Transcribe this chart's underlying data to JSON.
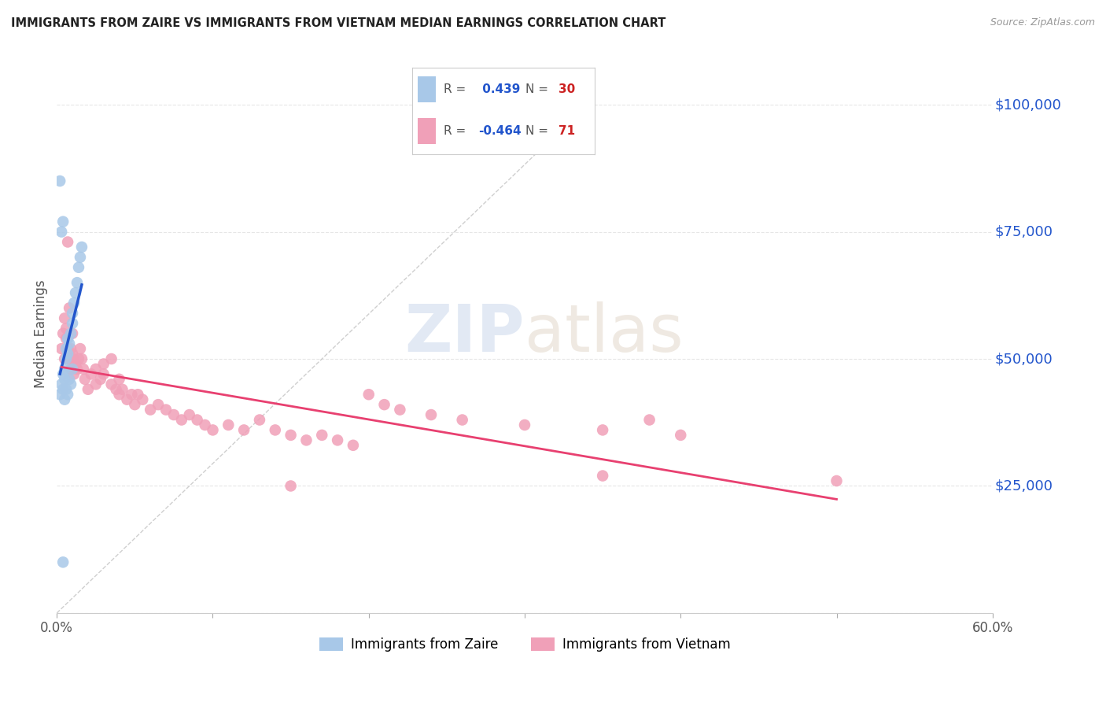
{
  "title": "IMMIGRANTS FROM ZAIRE VS IMMIGRANTS FROM VIETNAM MEDIAN EARNINGS CORRELATION CHART",
  "source": "Source: ZipAtlas.com",
  "ylabel": "Median Earnings",
  "xlim": [
    0.0,
    0.6
  ],
  "ylim": [
    0,
    110000
  ],
  "yticks": [
    0,
    25000,
    50000,
    75000,
    100000
  ],
  "ytick_labels": [
    "",
    "$25,000",
    "$50,000",
    "$75,000",
    "$100,000"
  ],
  "background_color": "#ffffff",
  "grid_color": "#e0e0e0",
  "zaire_color": "#a8c8e8",
  "vietnam_color": "#f0a0b8",
  "zaire_line_color": "#2255cc",
  "vietnam_line_color": "#e84070",
  "zaire_R": 0.439,
  "zaire_N": 30,
  "vietnam_R": -0.464,
  "vietnam_N": 71,
  "legend_R_color": "#2255cc",
  "legend_N_color": "#cc2222",
  "zaire_scatter": [
    [
      0.002,
      43000
    ],
    [
      0.003,
      45000
    ],
    [
      0.004,
      47000
    ],
    [
      0.004,
      44000
    ],
    [
      0.005,
      46000
    ],
    [
      0.005,
      48000
    ],
    [
      0.006,
      50000
    ],
    [
      0.006,
      52000
    ],
    [
      0.007,
      51000
    ],
    [
      0.007,
      54000
    ],
    [
      0.008,
      53000
    ],
    [
      0.009,
      55000
    ],
    [
      0.01,
      57000
    ],
    [
      0.01,
      59000
    ],
    [
      0.011,
      61000
    ],
    [
      0.012,
      63000
    ],
    [
      0.013,
      65000
    ],
    [
      0.014,
      68000
    ],
    [
      0.015,
      70000
    ],
    [
      0.016,
      72000
    ],
    [
      0.003,
      75000
    ],
    [
      0.004,
      77000
    ],
    [
      0.002,
      85000
    ],
    [
      0.005,
      42000
    ],
    [
      0.006,
      44000
    ],
    [
      0.007,
      43000
    ],
    [
      0.008,
      46000
    ],
    [
      0.009,
      45000
    ],
    [
      0.01,
      48000
    ],
    [
      0.004,
      10000
    ]
  ],
  "vietnam_scatter": [
    [
      0.003,
      52000
    ],
    [
      0.004,
      55000
    ],
    [
      0.005,
      58000
    ],
    [
      0.005,
      50000
    ],
    [
      0.006,
      54000
    ],
    [
      0.006,
      56000
    ],
    [
      0.007,
      52000
    ],
    [
      0.007,
      73000
    ],
    [
      0.008,
      50000
    ],
    [
      0.008,
      60000
    ],
    [
      0.009,
      48000
    ],
    [
      0.009,
      52000
    ],
    [
      0.01,
      51000
    ],
    [
      0.01,
      55000
    ],
    [
      0.011,
      50000
    ],
    [
      0.011,
      47000
    ],
    [
      0.012,
      49000
    ],
    [
      0.013,
      48000
    ],
    [
      0.014,
      50000
    ],
    [
      0.015,
      52000
    ],
    [
      0.016,
      50000
    ],
    [
      0.017,
      48000
    ],
    [
      0.018,
      46000
    ],
    [
      0.02,
      44000
    ],
    [
      0.022,
      47000
    ],
    [
      0.025,
      45000
    ],
    [
      0.025,
      48000
    ],
    [
      0.028,
      46000
    ],
    [
      0.03,
      49000
    ],
    [
      0.03,
      47000
    ],
    [
      0.035,
      45000
    ],
    [
      0.035,
      50000
    ],
    [
      0.038,
      44000
    ],
    [
      0.04,
      46000
    ],
    [
      0.04,
      43000
    ],
    [
      0.042,
      44000
    ],
    [
      0.045,
      42000
    ],
    [
      0.048,
      43000
    ],
    [
      0.05,
      41000
    ],
    [
      0.052,
      43000
    ],
    [
      0.055,
      42000
    ],
    [
      0.06,
      40000
    ],
    [
      0.065,
      41000
    ],
    [
      0.07,
      40000
    ],
    [
      0.075,
      39000
    ],
    [
      0.08,
      38000
    ],
    [
      0.085,
      39000
    ],
    [
      0.09,
      38000
    ],
    [
      0.095,
      37000
    ],
    [
      0.1,
      36000
    ],
    [
      0.11,
      37000
    ],
    [
      0.12,
      36000
    ],
    [
      0.13,
      38000
    ],
    [
      0.14,
      36000
    ],
    [
      0.15,
      35000
    ],
    [
      0.16,
      34000
    ],
    [
      0.17,
      35000
    ],
    [
      0.18,
      34000
    ],
    [
      0.19,
      33000
    ],
    [
      0.2,
      43000
    ],
    [
      0.21,
      41000
    ],
    [
      0.22,
      40000
    ],
    [
      0.24,
      39000
    ],
    [
      0.26,
      38000
    ],
    [
      0.3,
      37000
    ],
    [
      0.35,
      36000
    ],
    [
      0.38,
      38000
    ],
    [
      0.4,
      35000
    ],
    [
      0.15,
      25000
    ],
    [
      0.35,
      27000
    ],
    [
      0.5,
      26000
    ]
  ]
}
